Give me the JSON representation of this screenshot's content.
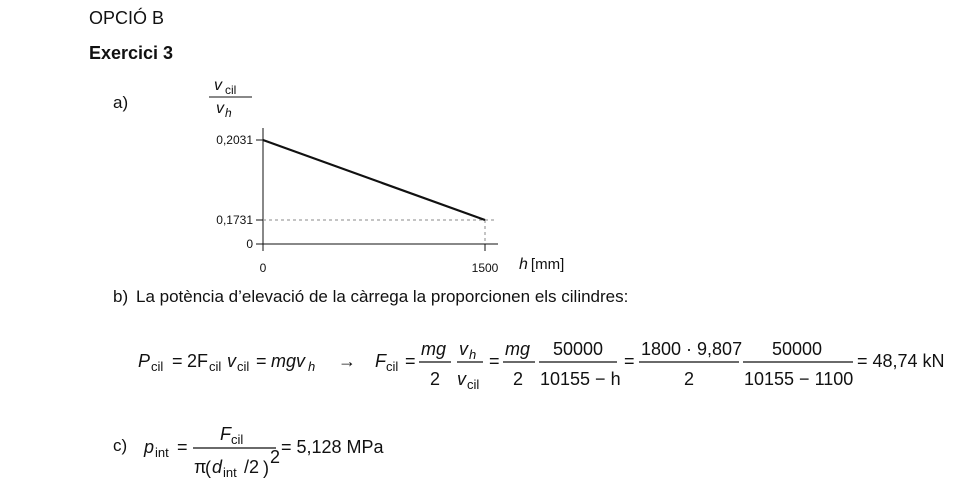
{
  "section_title": "OPCIÓ B",
  "exercise_title": "Exercici 3",
  "part_a": {
    "label": "a)",
    "chart_data": {
      "type": "line",
      "title": "",
      "ylabel_num": "v",
      "ylabel_num_sub": "cil",
      "ylabel_den": "v",
      "ylabel_den_sub": "h",
      "xlabel_var": "h",
      "xlabel_unit": "[mm]",
      "x": [
        0,
        1500
      ],
      "y": [
        0.2031,
        0.1731
      ],
      "xlim": [
        0,
        1500
      ],
      "y_ticks": [
        {
          "value": 0,
          "label": "0"
        },
        {
          "value": 0.1731,
          "label": "0,1731"
        },
        {
          "value": 0.2031,
          "label": "0,2031"
        }
      ],
      "x_ticks": [
        {
          "value": 0,
          "label": "0"
        },
        {
          "value": 1500,
          "label": "1500"
        }
      ],
      "grid": false
    }
  },
  "part_b": {
    "label": "b)",
    "text": "La potència d’elevació de la càrrega la proporcionen els cilindres:",
    "eq": {
      "P": "P",
      "sub_cil": "cil",
      "eq": "=",
      "two_F": "2F",
      "v": "v",
      "mgv": "mgv",
      "sub_h": "h",
      "arrow": "→",
      "F": "F",
      "mg": "mg",
      "two": "2",
      "n50000": "50000",
      "den_a": "10155 − h",
      "num_c": "1800 · 9,807",
      "den_d": "10155 − 1100",
      "result": "= 48,74 kN"
    }
  },
  "part_c": {
    "label": "c)",
    "eq": {
      "p": "p",
      "sub_int": "int",
      "F": "F",
      "sub_cil": "cil",
      "pi": "π",
      "d": "d",
      "over2": "/2",
      "lparen": "(",
      "rparen": ")",
      "sq": "2",
      "result": "= 5,128 MPa",
      "eq": "="
    }
  }
}
